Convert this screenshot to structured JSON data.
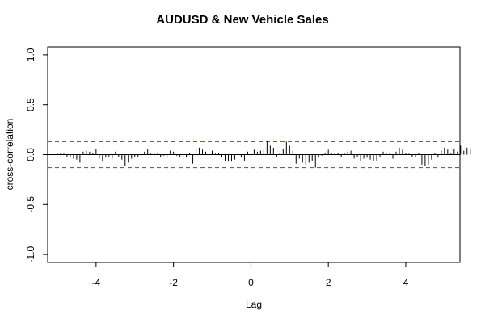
{
  "chart_data": {
    "type": "bar",
    "title": "AUDUSD & New Vehicle Sales",
    "xlabel": "Lag",
    "ylabel": "cross-correlation",
    "xlim": [
      -5.25,
      5.4
    ],
    "ylim": [
      -1.08,
      1.08
    ],
    "xticks": [
      -4,
      -2,
      0,
      2,
      4
    ],
    "xtick_labels": [
      "-4",
      "-2",
      "0",
      "2",
      "4"
    ],
    "yticks": [
      -1.0,
      -0.5,
      0.0,
      0.5,
      1.0
    ],
    "ytick_labels": [
      "-1.0",
      "-0.5",
      "0.0",
      "0.5",
      "1.0"
    ],
    "confidence_band": [
      -0.13,
      0.13
    ],
    "confidence_band_color": "#5555dd",
    "bar_color": "#000000",
    "lag_step": 0.0833333,
    "lag_start": -5.0,
    "values": [
      0.01,
      0.02,
      0.01,
      -0.02,
      -0.03,
      -0.04,
      -0.05,
      -0.08,
      0.03,
      0.04,
      0.03,
      0.02,
      0.06,
      -0.04,
      -0.07,
      -0.03,
      -0.02,
      -0.04,
      0.03,
      -0.02,
      -0.05,
      -0.11,
      -0.08,
      -0.04,
      -0.02,
      -0.02,
      -0.01,
      0.03,
      0.06,
      0.01,
      0.02,
      0.01,
      -0.02,
      -0.01,
      -0.03,
      0.04,
      0.03,
      -0.01,
      -0.02,
      -0.02,
      -0.03,
      0.02,
      -0.09,
      0.06,
      0.07,
      0.05,
      0.03,
      -0.02,
      0.04,
      0.01,
      0.02,
      -0.03,
      -0.06,
      -0.07,
      -0.07,
      -0.05,
      0.01,
      -0.03,
      -0.06,
      0.03,
      -0.02,
      0.05,
      0.03,
      0.04,
      0.05,
      0.14,
      0.09,
      0.07,
      -0.02,
      0.02,
      0.06,
      0.13,
      0.09,
      0.04,
      -0.09,
      -0.04,
      -0.08,
      -0.1,
      -0.08,
      -0.06,
      -0.13,
      -0.03,
      -0.01,
      0.02,
      0.05,
      0.02,
      0.01,
      0.02,
      -0.02,
      0.01,
      0.03,
      0.04,
      -0.04,
      -0.02,
      -0.06,
      -0.04,
      -0.03,
      -0.05,
      -0.06,
      -0.06,
      -0.02,
      0.03,
      0.02,
      0.01,
      -0.04,
      0.03,
      0.07,
      0.05,
      0.02,
      0.01,
      -0.02,
      -0.03,
      0.02,
      -0.1,
      -0.11,
      -0.1,
      -0.05,
      0.02,
      -0.03,
      0.04,
      0.07,
      0.05,
      0.02,
      0.06,
      0.03,
      0.09,
      0.04,
      0.07,
      0.05
    ]
  }
}
